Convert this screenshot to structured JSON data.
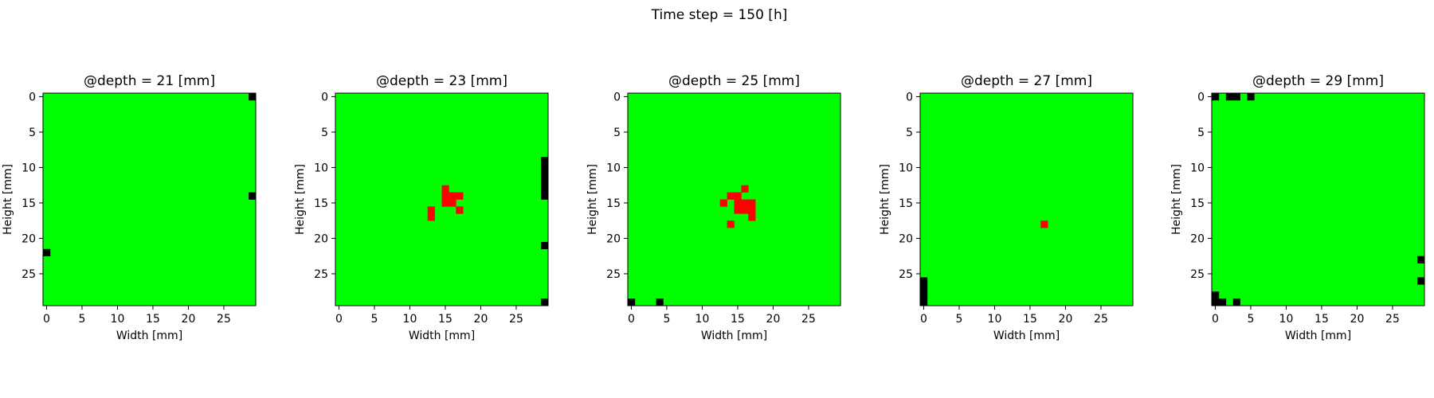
{
  "suptitle": "Time step = 150 [h]",
  "chart_data": [
    {
      "type": "heatmap",
      "title": "@depth = 21 [mm]",
      "xlabel": "Width [mm]",
      "ylabel": "Height [mm]",
      "grid_size": [
        30,
        30
      ],
      "xlim": [
        -0.5,
        29.5
      ],
      "ylim": [
        29.5,
        -0.5
      ],
      "xticks": [
        0,
        5,
        10,
        15,
        20,
        25
      ],
      "yticks": [
        0,
        5,
        10,
        15,
        20,
        25
      ],
      "background": "#00ff00",
      "black_cells": [
        [
          29,
          0
        ],
        [
          29,
          14
        ],
        [
          0,
          22
        ]
      ],
      "red_cells": []
    },
    {
      "type": "heatmap",
      "title": "@depth = 23 [mm]",
      "xlabel": "Width [mm]",
      "ylabel": "Height [mm]",
      "grid_size": [
        30,
        30
      ],
      "xlim": [
        -0.5,
        29.5
      ],
      "ylim": [
        29.5,
        -0.5
      ],
      "xticks": [
        0,
        5,
        10,
        15,
        20,
        25
      ],
      "yticks": [
        0,
        5,
        10,
        15,
        20,
        25
      ],
      "background": "#00ff00",
      "black_cells": [
        [
          29,
          9
        ],
        [
          29,
          10
        ],
        [
          29,
          11
        ],
        [
          29,
          12
        ],
        [
          29,
          13
        ],
        [
          29,
          14
        ],
        [
          29,
          21
        ],
        [
          29,
          29
        ]
      ],
      "red_cells": [
        [
          15,
          13
        ],
        [
          15,
          14
        ],
        [
          16,
          14
        ],
        [
          17,
          14
        ],
        [
          15,
          15
        ],
        [
          16,
          15
        ],
        [
          13,
          16
        ],
        [
          17,
          16
        ],
        [
          13,
          17
        ]
      ]
    },
    {
      "type": "heatmap",
      "title": "@depth = 25 [mm]",
      "xlabel": "Width [mm]",
      "ylabel": "Height [mm]",
      "grid_size": [
        30,
        30
      ],
      "xlim": [
        -0.5,
        29.5
      ],
      "ylim": [
        29.5,
        -0.5
      ],
      "xticks": [
        0,
        5,
        10,
        15,
        20,
        25
      ],
      "yticks": [
        0,
        5,
        10,
        15,
        20,
        25
      ],
      "background": "#00ff00",
      "black_cells": [
        [
          0,
          29
        ],
        [
          4,
          29
        ]
      ],
      "red_cells": [
        [
          16,
          13
        ],
        [
          14,
          14
        ],
        [
          15,
          14
        ],
        [
          13,
          15
        ],
        [
          15,
          15
        ],
        [
          16,
          15
        ],
        [
          17,
          15
        ],
        [
          15,
          16
        ],
        [
          16,
          16
        ],
        [
          17,
          16
        ],
        [
          17,
          17
        ],
        [
          14,
          18
        ]
      ]
    },
    {
      "type": "heatmap",
      "title": "@depth = 27 [mm]",
      "xlabel": "Width [mm]",
      "ylabel": "Height [mm]",
      "grid_size": [
        30,
        30
      ],
      "xlim": [
        -0.5,
        29.5
      ],
      "ylim": [
        29.5,
        -0.5
      ],
      "xticks": [
        0,
        5,
        10,
        15,
        20,
        25
      ],
      "yticks": [
        0,
        5,
        10,
        15,
        20,
        25
      ],
      "background": "#00ff00",
      "black_cells": [
        [
          0,
          26
        ],
        [
          0,
          27
        ],
        [
          0,
          28
        ],
        [
          0,
          29
        ]
      ],
      "red_cells": [
        [
          17,
          18
        ]
      ]
    },
    {
      "type": "heatmap",
      "title": "@depth = 29 [mm]",
      "xlabel": "Width [mm]",
      "ylabel": "Height [mm]",
      "grid_size": [
        30,
        30
      ],
      "xlim": [
        -0.5,
        29.5
      ],
      "ylim": [
        29.5,
        -0.5
      ],
      "xticks": [
        0,
        5,
        10,
        15,
        20,
        25
      ],
      "yticks": [
        0,
        5,
        10,
        15,
        20,
        25
      ],
      "background": "#00ff00",
      "black_cells": [
        [
          0,
          0
        ],
        [
          2,
          0
        ],
        [
          3,
          0
        ],
        [
          5,
          0
        ],
        [
          29,
          23
        ],
        [
          29,
          26
        ],
        [
          0,
          28
        ],
        [
          0,
          29
        ],
        [
          1,
          29
        ],
        [
          3,
          29
        ]
      ],
      "red_cells": []
    }
  ]
}
